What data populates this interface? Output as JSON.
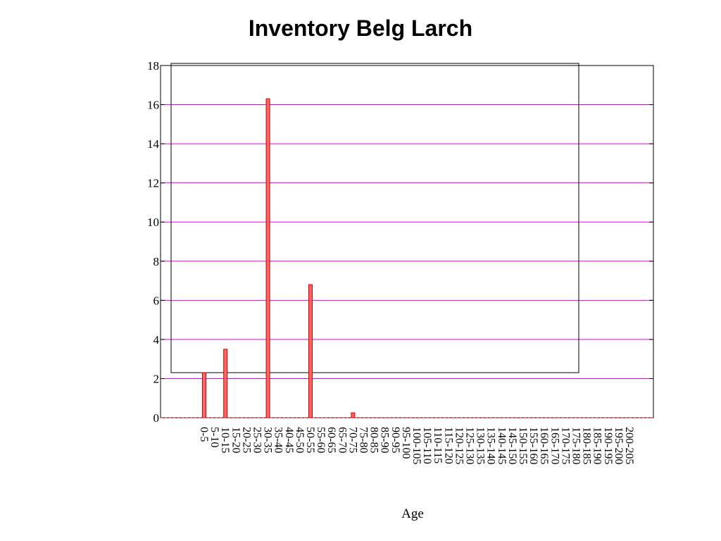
{
  "chart_data": {
    "type": "bar",
    "title": "Inventory Belg Larch",
    "xlabel": "Age",
    "ylabel": "",
    "ylim": [
      0,
      18
    ],
    "yticks": [
      0,
      2,
      4,
      6,
      8,
      10,
      12,
      14,
      16,
      18
    ],
    "grid": true,
    "colors": {
      "bar_fill": "#ff6666",
      "bar_stroke": "#cc0000",
      "grid": "#ee00ee",
      "frame": "#000000"
    },
    "categories": [
      "0-5",
      "5-10",
      "10-15",
      "15-20",
      "20-25",
      "25-30",
      "30-35",
      "35-40",
      "40-45",
      "45-50",
      "50-55",
      "55-60",
      "60-65",
      "65-70",
      "70-75",
      "75-80",
      "80-85",
      "85-90",
      "90-95",
      "95-100",
      "100-105",
      "105-110",
      "110-115",
      "115-120",
      "120-125",
      "125-130",
      "130-135",
      "135-140",
      "140-145",
      "145-150",
      "150-155",
      "155-160",
      "160-165",
      "165-170",
      "170-175",
      "175-180",
      "180-185",
      "185-190",
      "190-195",
      "195-200",
      "200-205"
    ],
    "values": [
      2.3,
      0,
      3.5,
      0,
      0,
      0,
      16.3,
      0,
      0,
      0,
      6.8,
      0,
      0,
      0,
      0.25,
      0,
      0,
      0,
      0,
      0,
      0,
      0,
      0,
      0,
      0,
      0,
      0,
      0,
      0,
      0,
      0,
      0,
      0,
      0,
      0,
      0,
      0,
      0,
      0,
      0,
      0
    ]
  }
}
